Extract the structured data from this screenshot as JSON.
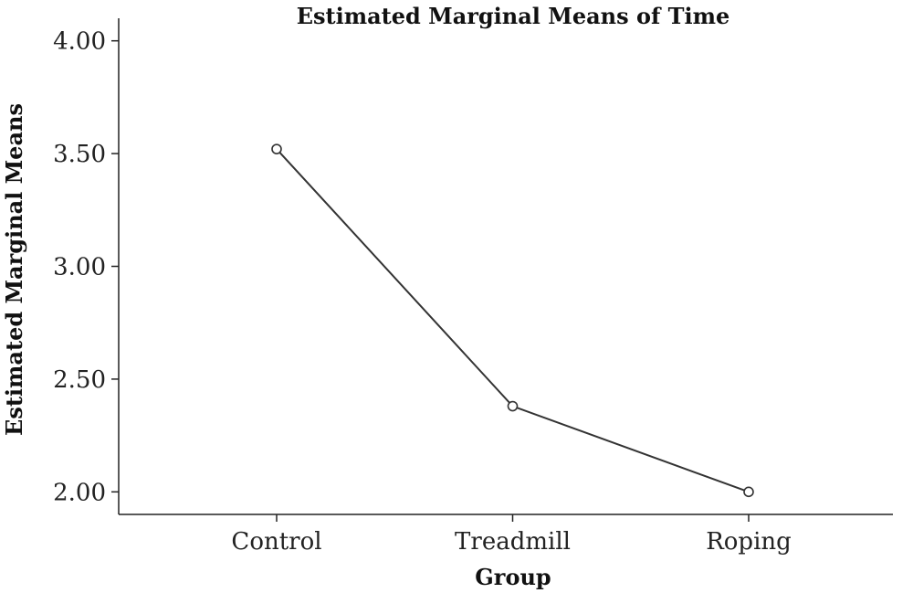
{
  "chart_data": {
    "type": "line",
    "title": "Estimated Marginal Means of Time",
    "xlabel": "Group",
    "ylabel": "Estimated Marginal Means",
    "categories": [
      "Control",
      "Treadmill",
      "Roping"
    ],
    "series": [
      {
        "values": [
          3.52,
          2.38,
          2.0
        ]
      }
    ],
    "ylim": [
      1.9,
      4.1
    ],
    "yticks": [
      2.0,
      2.5,
      3.0,
      3.5,
      4.0
    ],
    "ytick_labels": [
      "2.00",
      "2.50",
      "3.00",
      "3.50",
      "4.00"
    ],
    "grid": false,
    "marker": "circle-open"
  }
}
